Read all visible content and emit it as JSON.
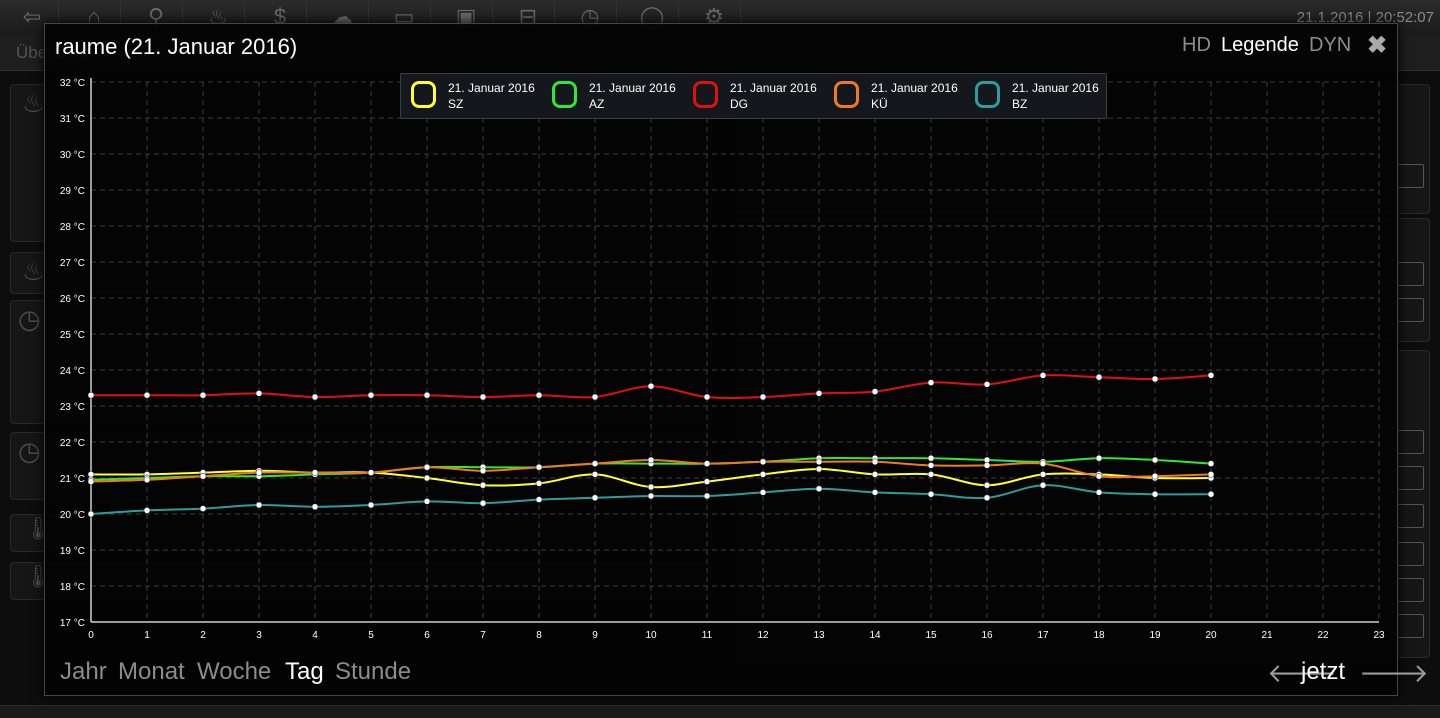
{
  "background": {
    "clock": "21.1.2016 | 20:52:07",
    "nav_icons": [
      "back-icon",
      "home-icon",
      "pin-icon",
      "flame-icon",
      "dollar-icon",
      "weather-icon",
      "tv-icon",
      "bus-icon",
      "train-icon",
      "clock-icon",
      "chat-icon",
      "gear-icon"
    ],
    "subbar_label": "Übersicht"
  },
  "modal": {
    "title": "raume (21. Januar 2016)",
    "hd_label": "HD",
    "legend_label": "Legende",
    "dyn_label": "DYN",
    "close_symbol": "✖",
    "ranges": [
      {
        "label": "Jahr",
        "active": false
      },
      {
        "label": "Monat",
        "active": false
      },
      {
        "label": "Woche",
        "active": false
      },
      {
        "label": "Tag",
        "active": true
      },
      {
        "label": "Stunde",
        "active": false
      }
    ],
    "prev_symbol": "🡐",
    "now_label": "jetzt",
    "next_symbol": "🡒"
  },
  "chart_data": {
    "type": "line",
    "title": "",
    "xlabel": "",
    "ylabel": "",
    "x_ticks": [
      0,
      1,
      2,
      3,
      4,
      5,
      6,
      7,
      8,
      9,
      10,
      11,
      12,
      13,
      14,
      15,
      16,
      17,
      18,
      19,
      20,
      21,
      22,
      23
    ],
    "xlim": [
      0,
      23
    ],
    "y_ticks": [
      "17 °C",
      "18 °C",
      "19 °C",
      "20 °C",
      "21 °C",
      "22 °C",
      "23 °C",
      "24 °C",
      "25 °C",
      "26 °C",
      "27 °C",
      "28 °C",
      "29 °C",
      "30 °C",
      "31 °C",
      "32 °C"
    ],
    "ylim": [
      17,
      32
    ],
    "grid": true,
    "legend_position": "top",
    "x": [
      0,
      1,
      2,
      3,
      4,
      5,
      6,
      7,
      8,
      9,
      10,
      11,
      12,
      13,
      14,
      15,
      16,
      17,
      18,
      19,
      20
    ],
    "series": [
      {
        "date": "21. Januar 2016",
        "name": "SZ",
        "color": "#ffff33",
        "values": [
          21.1,
          21.1,
          21.15,
          21.2,
          21.15,
          21.15,
          21.0,
          20.8,
          20.85,
          21.1,
          20.75,
          20.9,
          21.1,
          21.25,
          21.1,
          21.1,
          20.8,
          21.1,
          21.1,
          21.0,
          21.0
        ]
      },
      {
        "date": "21. Januar 2016",
        "name": "AZ",
        "color": "#33e633",
        "values": [
          20.95,
          21.0,
          21.05,
          21.05,
          21.1,
          21.15,
          21.3,
          21.3,
          21.3,
          21.4,
          21.4,
          21.4,
          21.45,
          21.55,
          21.55,
          21.55,
          21.5,
          21.45,
          21.55,
          21.5,
          21.4
        ]
      },
      {
        "date": "21. Januar 2016",
        "name": "DG",
        "color": "#e01010",
        "values": [
          23.3,
          23.3,
          23.3,
          23.35,
          23.25,
          23.3,
          23.3,
          23.25,
          23.3,
          23.25,
          23.55,
          23.25,
          23.25,
          23.35,
          23.4,
          23.65,
          23.6,
          23.85,
          23.8,
          23.75,
          23.85
        ]
      },
      {
        "date": "21. Januar 2016",
        "name": "KÜ",
        "color": "#f07a20",
        "values": [
          20.9,
          20.95,
          21.05,
          21.15,
          21.15,
          21.15,
          21.3,
          21.2,
          21.3,
          21.4,
          21.5,
          21.4,
          21.45,
          21.45,
          21.45,
          21.35,
          21.35,
          21.4,
          21.05,
          21.05,
          21.1
        ]
      },
      {
        "date": "21. Januar 2016",
        "name": "BZ",
        "color": "#2e9c9c",
        "values": [
          20.0,
          20.1,
          20.15,
          20.25,
          20.2,
          20.25,
          20.35,
          20.3,
          20.4,
          20.45,
          20.5,
          20.5,
          20.6,
          20.7,
          20.6,
          20.55,
          20.45,
          20.8,
          20.6,
          20.55,
          20.55
        ]
      }
    ]
  }
}
